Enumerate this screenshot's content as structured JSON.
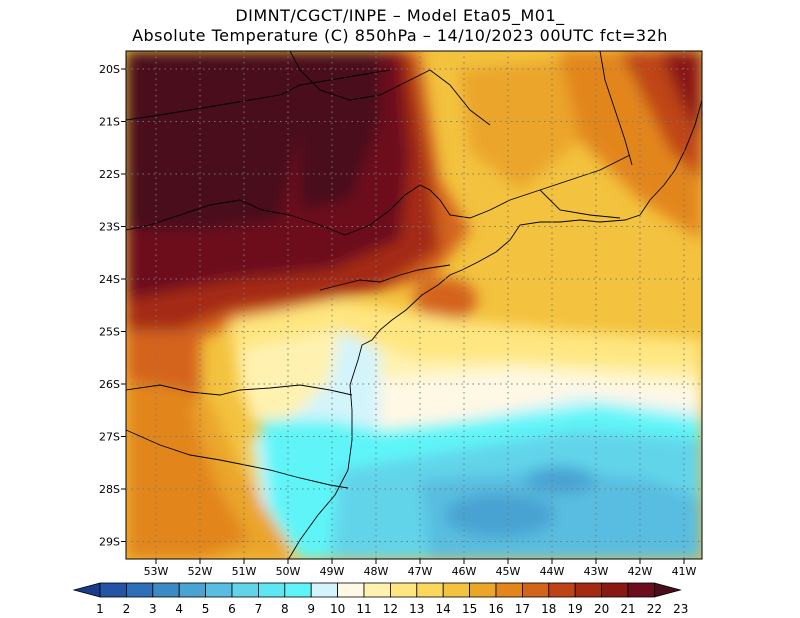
{
  "header": {
    "line1": "DIMNT/CGCT/INPE –  Model Eta05_M01_",
    "line2": "Absolute Temperature (C) 850hPa –  14/10/2023 00UTC fct=32h"
  },
  "map": {
    "lat_labels": [
      "20S",
      "21S",
      "22S",
      "23S",
      "24S",
      "25S",
      "26S",
      "27S",
      "28S",
      "29S"
    ],
    "lon_labels": [
      "53W",
      "52W",
      "51W",
      "50W",
      "49W",
      "48W",
      "47W",
      "46W",
      "45W",
      "44W",
      "43W",
      "42W",
      "41W"
    ],
    "gridlines": "dotted"
  },
  "colorbar": {
    "labels": [
      "1",
      "2",
      "3",
      "4",
      "5",
      "6",
      "7",
      "8",
      "9",
      "10",
      "11",
      "12",
      "13",
      "14",
      "15",
      "16",
      "17",
      "18",
      "19",
      "20",
      "21",
      "22",
      "23"
    ],
    "colors": [
      "#1a3a8c",
      "#2454a4",
      "#2d6fb8",
      "#3b8ac4",
      "#4aa3d2",
      "#58bde0",
      "#62d4ea",
      "#5ee6f2",
      "#5ff5f8",
      "#d4f4fb",
      "#fff8e4",
      "#fff2b0",
      "#ffe680",
      "#fbd75c",
      "#f3c23e",
      "#eba529",
      "#e2861c",
      "#d4641a",
      "#bf4415",
      "#a52a12",
      "#8a1812",
      "#6d0c1c",
      "#4a0e1a"
    ]
  }
}
